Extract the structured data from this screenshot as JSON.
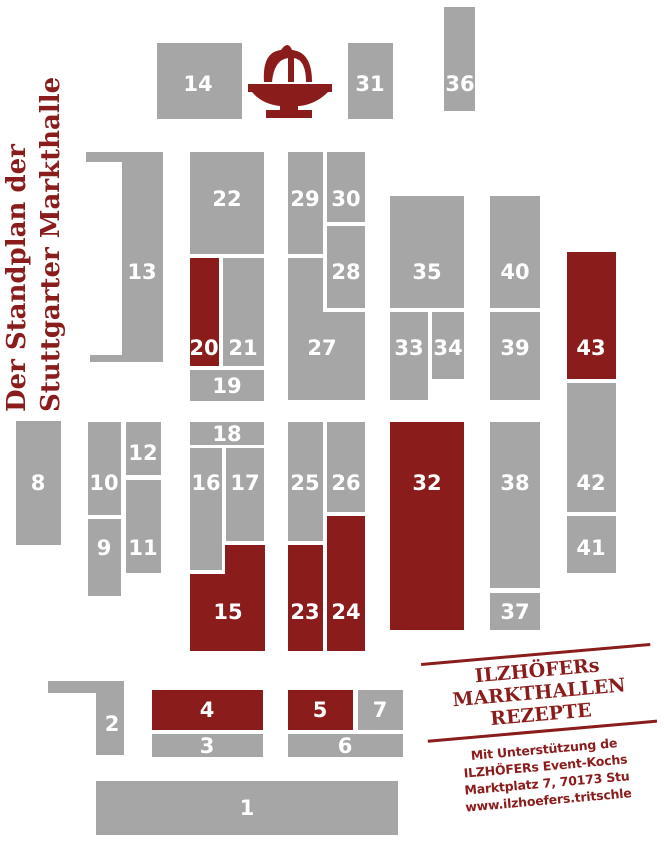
{
  "title": {
    "line1": "Der Standplan der",
    "line2": "Stuttgarter Markthalle"
  },
  "stalls": [
    {
      "id": "1",
      "highlight": false
    },
    {
      "id": "2",
      "highlight": false
    },
    {
      "id": "3",
      "highlight": false
    },
    {
      "id": "4",
      "highlight": true
    },
    {
      "id": "5",
      "highlight": true
    },
    {
      "id": "6",
      "highlight": false
    },
    {
      "id": "7",
      "highlight": false
    },
    {
      "id": "8",
      "highlight": false
    },
    {
      "id": "9",
      "highlight": false
    },
    {
      "id": "10",
      "highlight": false
    },
    {
      "id": "11",
      "highlight": false
    },
    {
      "id": "12",
      "highlight": false
    },
    {
      "id": "13",
      "highlight": false
    },
    {
      "id": "14",
      "highlight": false
    },
    {
      "id": "15",
      "highlight": true
    },
    {
      "id": "16",
      "highlight": false
    },
    {
      "id": "17",
      "highlight": false
    },
    {
      "id": "18",
      "highlight": false
    },
    {
      "id": "19",
      "highlight": false
    },
    {
      "id": "20",
      "highlight": true
    },
    {
      "id": "21",
      "highlight": false
    },
    {
      "id": "22",
      "highlight": false
    },
    {
      "id": "23",
      "highlight": true
    },
    {
      "id": "24",
      "highlight": true
    },
    {
      "id": "25",
      "highlight": false
    },
    {
      "id": "26",
      "highlight": false
    },
    {
      "id": "27",
      "highlight": false
    },
    {
      "id": "28",
      "highlight": false
    },
    {
      "id": "29",
      "highlight": false
    },
    {
      "id": "30",
      "highlight": false
    },
    {
      "id": "31",
      "highlight": false
    },
    {
      "id": "32",
      "highlight": true
    },
    {
      "id": "33",
      "highlight": false
    },
    {
      "id": "34",
      "highlight": false
    },
    {
      "id": "35",
      "highlight": false
    },
    {
      "id": "36",
      "highlight": false
    },
    {
      "id": "37",
      "highlight": false
    },
    {
      "id": "38",
      "highlight": false
    },
    {
      "id": "39",
      "highlight": false
    },
    {
      "id": "40",
      "highlight": false
    },
    {
      "id": "41",
      "highlight": false
    },
    {
      "id": "42",
      "highlight": false
    },
    {
      "id": "43",
      "highlight": true
    }
  ],
  "fountain_icon": "fountain-icon",
  "stamp": {
    "heading_line1": "ILZHÖFERs",
    "heading_line2": "MARKTHALLEN",
    "heading_line3": "REZEPTE",
    "line1": "Mit Unterstützung de",
    "line2": "ILZHÖFERs Event-Kochs",
    "line3": "Marktplatz 7, 70173 Stu",
    "line4": "www.ilzhoefers.tritschle"
  },
  "colors": {
    "stall_gray": "#a6a6a6",
    "highlight_red": "#8a1c1b",
    "text_white": "#ffffff"
  }
}
